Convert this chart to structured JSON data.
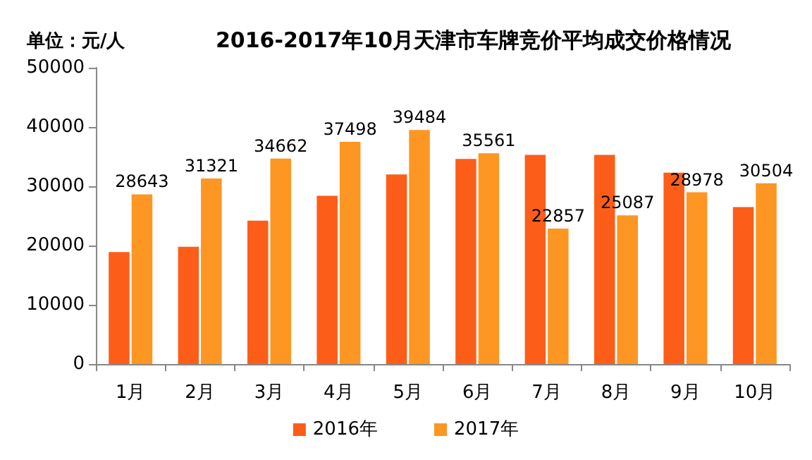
{
  "chart_data": {
    "type": "bar",
    "title": "2016-2017年10月天津市车牌竞价平均成交价格情况",
    "ylabel": "单位：元/人",
    "categories": [
      "1月",
      "2月",
      "3月",
      "4月",
      "5月",
      "6月",
      "7月",
      "8月",
      "9月",
      "10月"
    ],
    "series": [
      {
        "name": "2016年",
        "color": "#fc5e1a",
        "values": [
          18900,
          19800,
          24200,
          28400,
          32000,
          34600,
          35300,
          35300,
          32300,
          26500
        ]
      },
      {
        "name": "2017年",
        "color": "#fd9622",
        "values": [
          28643,
          31321,
          34662,
          37498,
          39484,
          35561,
          22857,
          25087,
          28978,
          30504
        ],
        "value_labels": [
          "28643",
          "31321",
          "34662",
          "37498",
          "39484",
          "35561",
          "22857",
          "25087",
          "28978",
          "30504"
        ]
      }
    ],
    "ylim": [
      0,
      50000
    ],
    "yticks": [
      0,
      10000,
      20000,
      30000,
      40000,
      50000
    ],
    "grid": false,
    "legend": "bottom"
  }
}
